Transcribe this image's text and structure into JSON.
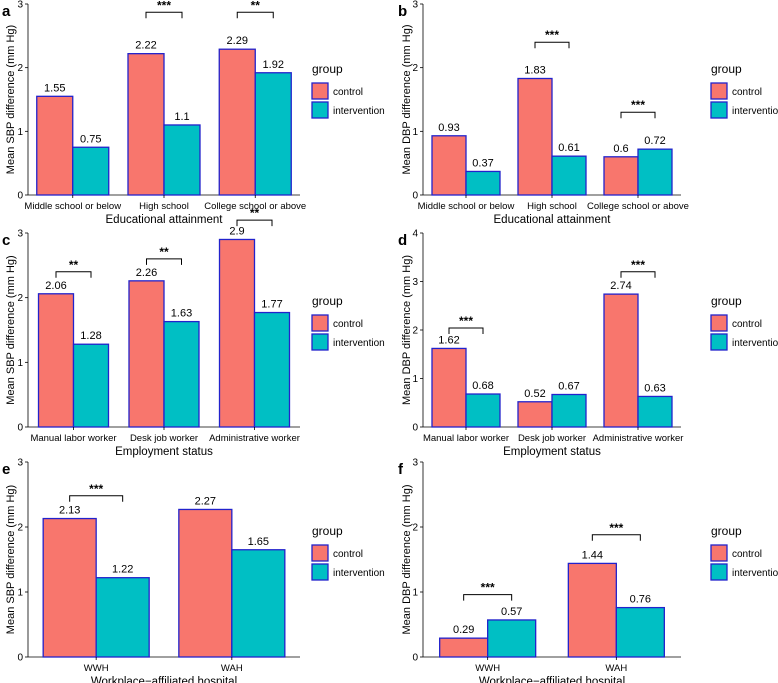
{
  "legend_title": "group",
  "chart_data": [
    {
      "panel": "a",
      "type": "bar",
      "categories": [
        "Middle school or below",
        "High school",
        "College school or above"
      ],
      "series": [
        {
          "name": "control",
          "values": [
            1.55,
            2.22,
            2.29
          ]
        },
        {
          "name": "intervention",
          "values": [
            0.75,
            1.1,
            1.92
          ]
        }
      ],
      "value_labels": [
        [
          "1.55",
          "2.22",
          "2.29"
        ],
        [
          "0.75",
          "1.1",
          "1.92"
        ]
      ],
      "significance": [
        "",
        "***",
        "**"
      ],
      "xlabel": "Educational attainment",
      "ylabel": "Mean SBP difference (mm Hg)",
      "ylim": [
        0,
        3
      ],
      "yticks": [
        "0",
        "1",
        "2",
        "3"
      ],
      "legend": {
        "title": "group",
        "entries": [
          "control",
          "intervention"
        ],
        "colors": [
          "#F8766D",
          "#00BFC4"
        ]
      }
    },
    {
      "panel": "b",
      "type": "bar",
      "categories": [
        "Middle school or below",
        "High school",
        "College school or above"
      ],
      "series": [
        {
          "name": "control",
          "values": [
            0.93,
            1.83,
            0.6
          ]
        },
        {
          "name": "intervention",
          "values": [
            0.37,
            0.61,
            0.72
          ]
        }
      ],
      "value_labels": [
        [
          "0.93",
          "1.83",
          "0.6"
        ],
        [
          "0.37",
          "0.61",
          "0.72"
        ]
      ],
      "significance": [
        "",
        "***",
        "***"
      ],
      "xlabel": "Educational attainment",
      "ylabel": "Mean DBP difference (mm Hg)",
      "ylim": [
        0,
        3
      ],
      "yticks": [
        "0",
        "1",
        "2",
        "3"
      ],
      "legend": {
        "title": "group",
        "entries": [
          "control",
          "intervention"
        ],
        "colors": [
          "#F8766D",
          "#00BFC4"
        ]
      }
    },
    {
      "panel": "c",
      "type": "bar",
      "categories": [
        "Manual labor worker",
        "Desk job worker",
        "Administrative worker"
      ],
      "series": [
        {
          "name": "control",
          "values": [
            2.06,
            2.26,
            2.9
          ]
        },
        {
          "name": "intervention",
          "values": [
            1.28,
            1.63,
            1.77
          ]
        }
      ],
      "value_labels": [
        [
          "2.06",
          "2.26",
          "2.9"
        ],
        [
          "1.28",
          "1.63",
          "1.77"
        ]
      ],
      "significance": [
        "**",
        "**",
        "**"
      ],
      "xlabel": "Employment status",
      "ylabel": "Mean SBP difference (mm Hg)",
      "ylim": [
        0,
        3
      ],
      "yticks": [
        "0",
        "1",
        "2",
        "3"
      ],
      "legend": {
        "title": "group",
        "entries": [
          "control",
          "intervention"
        ],
        "colors": [
          "#F8766D",
          "#00BFC4"
        ]
      }
    },
    {
      "panel": "d",
      "type": "bar",
      "categories": [
        "Manual labor worker",
        "Desk job worker",
        "Administrative worker"
      ],
      "series": [
        {
          "name": "control",
          "values": [
            1.62,
            0.52,
            2.74
          ]
        },
        {
          "name": "intervention",
          "values": [
            0.68,
            0.67,
            0.63
          ]
        }
      ],
      "value_labels": [
        [
          "1.62",
          "0.52",
          "2.74"
        ],
        [
          "0.68",
          "0.67",
          "0.63"
        ]
      ],
      "significance": [
        "***",
        "",
        "***"
      ],
      "xlabel": "Employment status",
      "ylabel": "Mean DBP difference (mm Hg)",
      "ylim": [
        0,
        4
      ],
      "yticks": [
        "0",
        "1",
        "2",
        "3",
        "4"
      ],
      "legend": {
        "title": "group",
        "entries": [
          "control",
          "intervention"
        ],
        "colors": [
          "#F8766D",
          "#00BFC4"
        ]
      }
    },
    {
      "panel": "e",
      "type": "bar",
      "categories": [
        "WWH",
        "WAH"
      ],
      "series": [
        {
          "name": "control",
          "values": [
            2.13,
            2.27
          ]
        },
        {
          "name": "intervention",
          "values": [
            1.22,
            1.65
          ]
        }
      ],
      "value_labels": [
        [
          "2.13",
          "2.27"
        ],
        [
          "1.22",
          "1.65"
        ]
      ],
      "significance": [
        "***",
        ""
      ],
      "xlabel": "Workplace−affiliated hospital",
      "ylabel": "Mean SBP difference (mm Hg)",
      "ylim": [
        0,
        3
      ],
      "yticks": [
        "0",
        "1",
        "2",
        "3"
      ],
      "legend": {
        "title": "group",
        "entries": [
          "control",
          "intervention"
        ],
        "colors": [
          "#F8766D",
          "#00BFC4"
        ]
      }
    },
    {
      "panel": "f",
      "type": "bar",
      "categories": [
        "WWH",
        "WAH"
      ],
      "series": [
        {
          "name": "control",
          "values": [
            0.29,
            1.44
          ]
        },
        {
          "name": "intervention",
          "values": [
            0.57,
            0.76
          ]
        }
      ],
      "value_labels": [
        [
          "0.29",
          "1.44"
        ],
        [
          "0.57",
          "0.76"
        ]
      ],
      "significance": [
        "***",
        "***"
      ],
      "xlabel": "Workplace−affiliated hospital",
      "ylabel": "Mean DBP difference (mm Hg)",
      "ylim": [
        0,
        3
      ],
      "yticks": [
        "0",
        "1",
        "2",
        "3"
      ],
      "legend": {
        "title": "group",
        "entries": [
          "control",
          "intervention"
        ],
        "colors": [
          "#F8766D",
          "#00BFC4"
        ]
      }
    }
  ],
  "colors": {
    "control": "#F8766D",
    "intervention": "#00BFC4",
    "bar_outline": "#2222CC",
    "axis": "#000000"
  }
}
